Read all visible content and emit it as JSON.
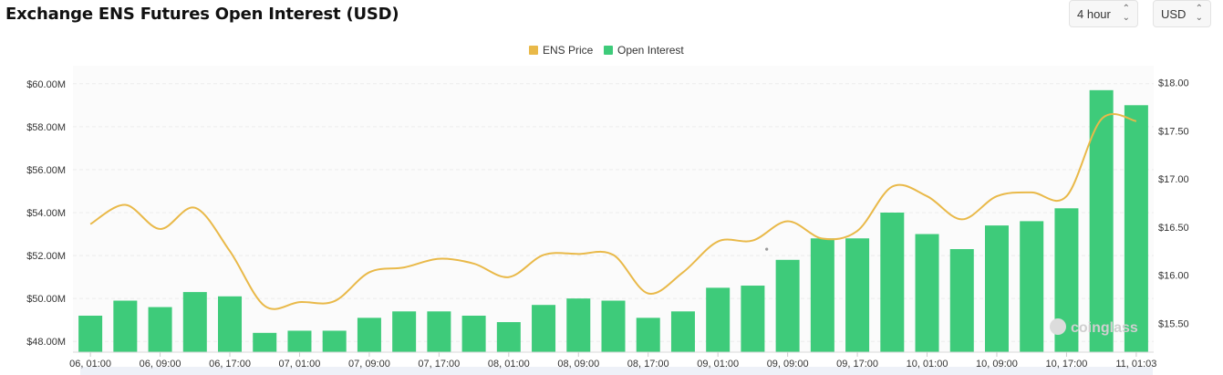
{
  "header": {
    "title": "Exchange ENS Futures Open Interest (USD)",
    "interval": {
      "value": "4 hour",
      "icon": "chevron-updown-icon"
    },
    "currency": {
      "value": "USD",
      "icon": "chevron-updown-icon"
    }
  },
  "watermark": "coinglass",
  "chart_data": {
    "type": "bar",
    "title": "Exchange ENS Futures Open Interest (USD)",
    "legend": {
      "position": "top-center",
      "entries": [
        "ENS Price",
        "Open Interest"
      ]
    },
    "x_tick_labels": [
      "06, 01:00",
      "06, 09:00",
      "06, 17:00",
      "07, 01:00",
      "07, 09:00",
      "07, 17:00",
      "08, 01:00",
      "08, 09:00",
      "08, 17:00",
      "09, 01:00",
      "09, 09:00",
      "09, 17:00",
      "10, 01:00",
      "10, 09:00",
      "10, 17:00",
      "11, 01:03"
    ],
    "y_left": {
      "ylim": [
        47.5,
        60.5
      ],
      "tick_values": [
        48,
        50,
        52,
        54,
        56,
        58,
        60
      ],
      "tick_labels": [
        "$48.00M",
        "$50.00M",
        "$52.00M",
        "$54.00M",
        "$56.00M",
        "$58.00M",
        "$60.00M"
      ]
    },
    "y_right": {
      "ylim": [
        15.2,
        18.1
      ],
      "tick_values": [
        15.5,
        16.0,
        16.5,
        17.0,
        17.5,
        18.0
      ],
      "tick_labels": [
        "$15.50",
        "$16.00",
        "$16.50",
        "$17.00",
        "$17.50",
        "$18.00"
      ]
    },
    "grid": true,
    "colors": {
      "price": "#e9b949",
      "open_interest": "#3ecb7a"
    },
    "series": [
      {
        "name": "Open Interest",
        "type": "bar",
        "axis": "left",
        "values": [
          49.2,
          49.9,
          49.6,
          50.3,
          50.1,
          48.4,
          48.5,
          48.5,
          49.1,
          49.4,
          49.4,
          49.2,
          48.9,
          49.7,
          50.0,
          49.9,
          49.1,
          49.4,
          50.5,
          50.6,
          51.8,
          52.8,
          52.8,
          54.0,
          53.0,
          52.3,
          53.4,
          53.6,
          54.2,
          59.7,
          59.0
        ]
      },
      {
        "name": "ENS Price",
        "type": "line",
        "axis": "right",
        "values": [
          16.53,
          16.73,
          16.48,
          16.7,
          16.25,
          15.68,
          15.72,
          15.73,
          16.03,
          16.08,
          16.17,
          16.12,
          15.98,
          16.21,
          16.22,
          16.21,
          15.81,
          16.03,
          16.35,
          16.36,
          16.56,
          16.38,
          16.46,
          16.92,
          16.82,
          16.58,
          16.82,
          16.86,
          16.82,
          17.62,
          17.6
        ]
      }
    ],
    "annotations": [
      {
        "type": "marker",
        "index": 19.4,
        "value": 16.27,
        "axis": "right"
      }
    ]
  }
}
